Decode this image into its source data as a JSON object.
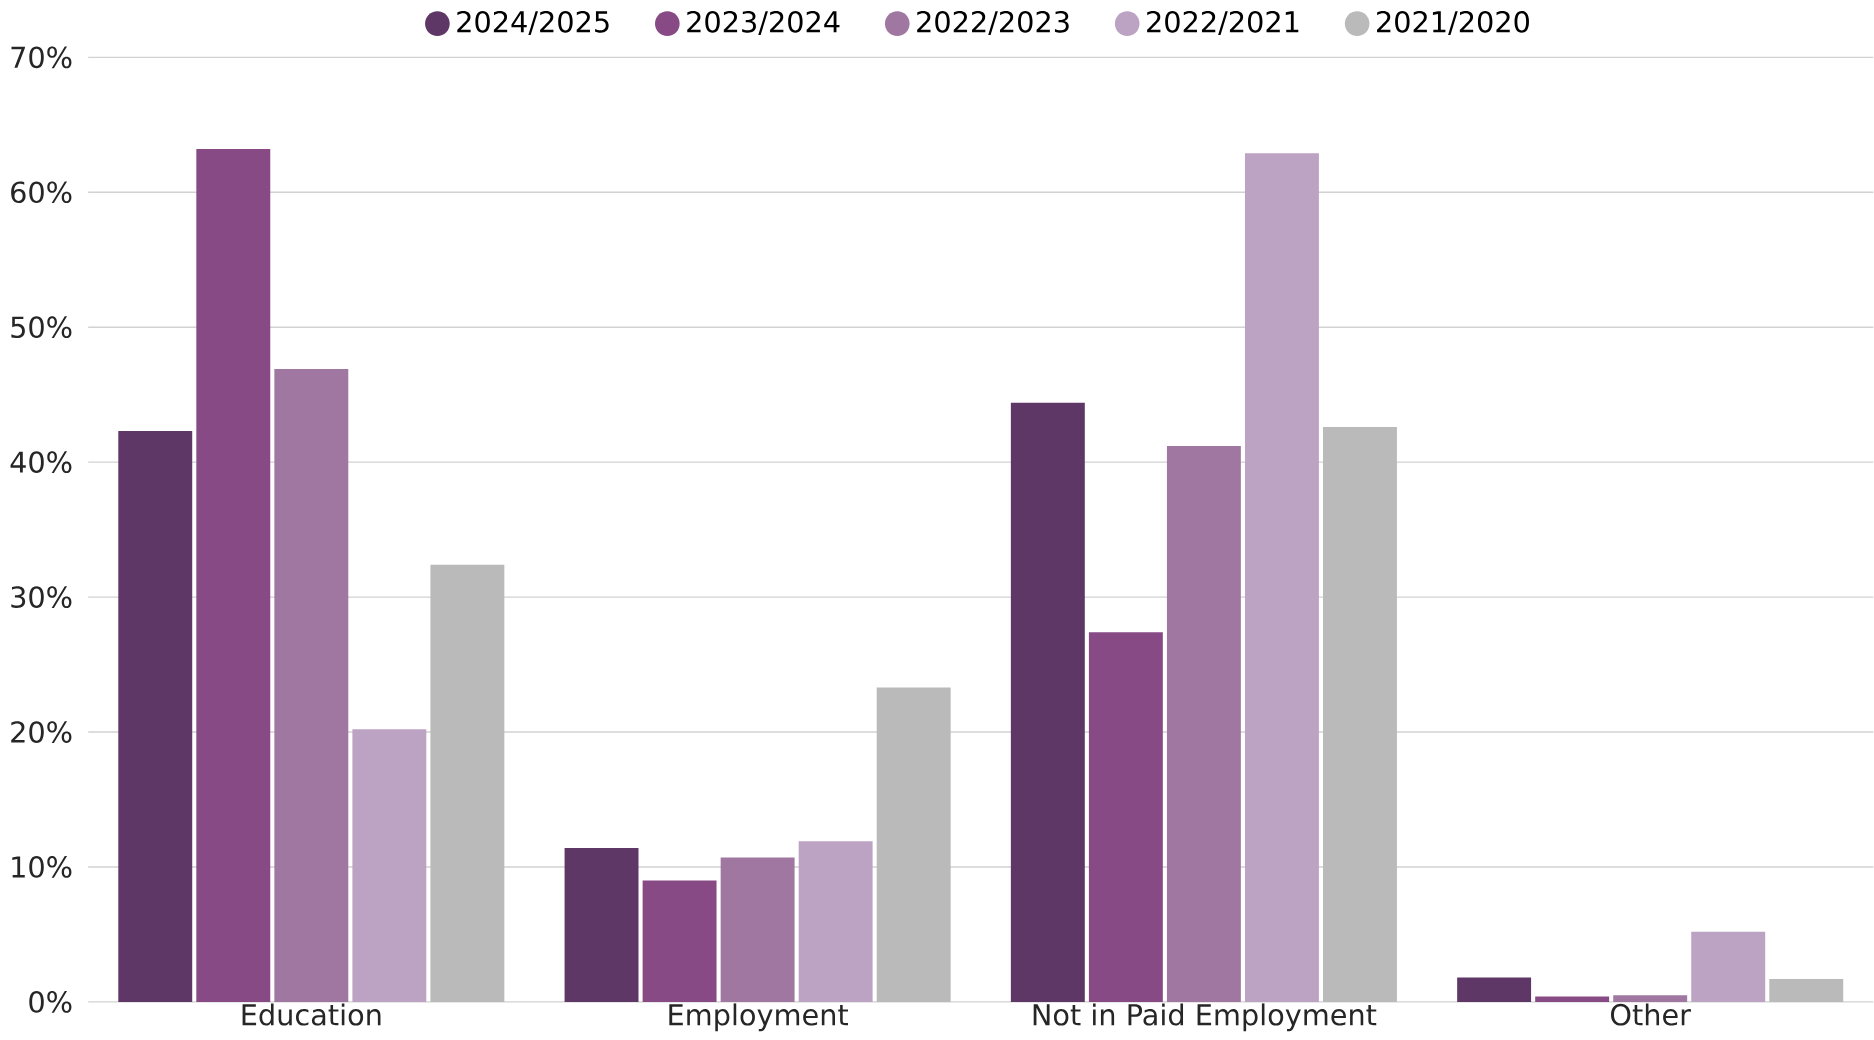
{
  "chart_data": {
    "type": "bar",
    "categories": [
      "Education",
      "Employment",
      "Not in Paid Employment",
      "Other"
    ],
    "series": [
      {
        "name": "2024/2025",
        "color": "#5e3766",
        "values": [
          42.3,
          11.4,
          44.4,
          1.8
        ]
      },
      {
        "name": "2023/2024",
        "color": "#874a85",
        "values": [
          63.2,
          9.0,
          27.4,
          0.4
        ]
      },
      {
        "name": "2022/2023",
        "color": "#a077a0",
        "values": [
          46.9,
          10.7,
          41.2,
          0.5
        ]
      },
      {
        "name": "2022/2021",
        "color": "#bca3c3",
        "values": [
          20.2,
          11.9,
          62.9,
          5.2
        ]
      },
      {
        "name": "2021/2020",
        "color": "#bababa",
        "values": [
          32.4,
          23.3,
          42.6,
          1.7
        ]
      }
    ],
    "ylim": [
      0,
      70
    ],
    "yticks": [
      {
        "value": 0,
        "label": "0%"
      },
      {
        "value": 10,
        "label": "10%"
      },
      {
        "value": 20,
        "label": "20%"
      },
      {
        "value": 30,
        "label": "30%"
      },
      {
        "value": 40,
        "label": "40%"
      },
      {
        "value": 50,
        "label": "50%"
      },
      {
        "value": 60,
        "label": "60%"
      },
      {
        "value": 70,
        "label": "70%"
      }
    ],
    "grid": "y",
    "legend": "top"
  }
}
